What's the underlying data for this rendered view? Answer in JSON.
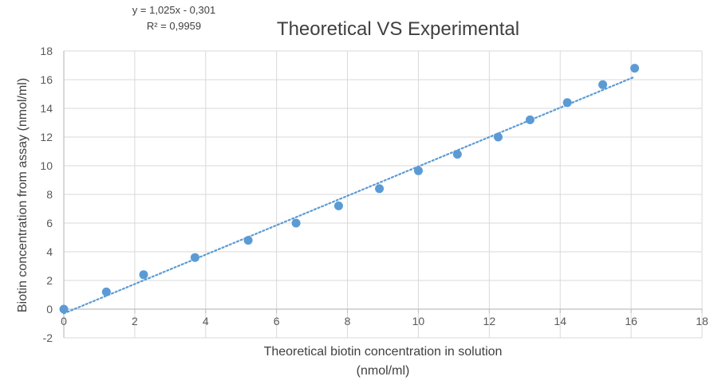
{
  "chart_data": {
    "type": "scatter",
    "title": "Theoretical VS Experimental",
    "xlabel_line1": "Theoretical biotin concentration in solution",
    "xlabel_line2": "(nmol/ml)",
    "ylabel": "Biotin concentration from assay (nmol/ml)",
    "xlim": [
      0,
      18
    ],
    "ylim": [
      -2,
      18
    ],
    "xticks": [
      0,
      2,
      4,
      6,
      8,
      10,
      12,
      14,
      16,
      18
    ],
    "yticks": [
      -2,
      0,
      2,
      4,
      6,
      8,
      10,
      12,
      14,
      16,
      18
    ],
    "grid": true,
    "legend": "none",
    "series": [
      {
        "name": "Experimental",
        "x": [
          0,
          1.2,
          2.25,
          3.7,
          5.2,
          6.55,
          7.75,
          8.9,
          10.0,
          11.1,
          12.25,
          13.15,
          14.2,
          15.2,
          16.1
        ],
        "y": [
          0,
          1.2,
          2.4,
          3.6,
          4.8,
          6.0,
          7.2,
          8.4,
          9.65,
          10.8,
          12.0,
          13.2,
          14.4,
          15.65,
          16.8
        ],
        "color": "#5b9bd5"
      }
    ],
    "trendline": {
      "slope": 1.025,
      "intercept": -0.301,
      "x_range": [
        0,
        16.1
      ],
      "color": "#5b9bd5",
      "style": "dotted",
      "equation": "y = 1,025x - 0,301",
      "r_squared": "R² = 0,9959"
    }
  }
}
